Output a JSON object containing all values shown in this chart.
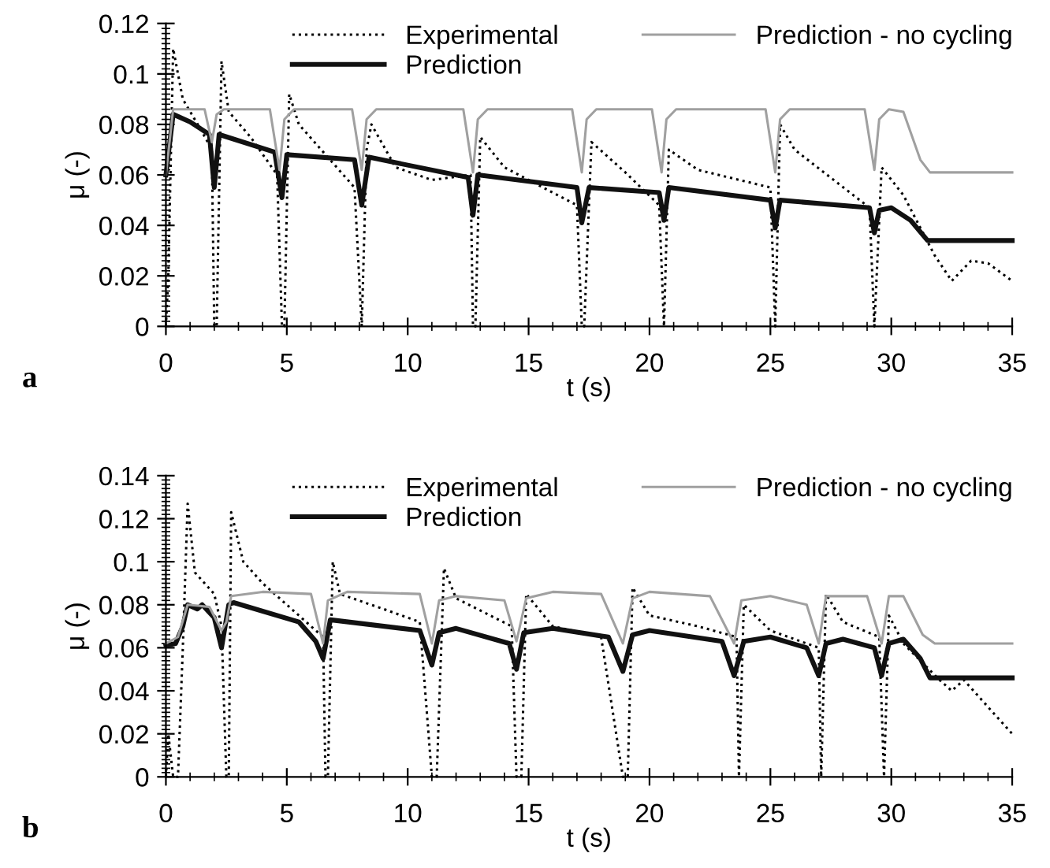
{
  "chart_data": [
    {
      "type": "line",
      "xlabel": "t (s)",
      "ylabel": "μ (-)",
      "annotations": [
        "a"
      ],
      "xlim": [
        0,
        35
      ],
      "ylim": [
        0,
        0.12
      ],
      "xticks": [
        0,
        5,
        10,
        15,
        20,
        25,
        30,
        35
      ],
      "yticks": [
        0,
        0.02,
        0.04,
        0.06,
        0.08,
        0.1,
        0.12
      ],
      "grid": false,
      "legend": "top",
      "series": [
        {
          "name": "Experimental",
          "color": "#000000",
          "line_style": "dotted",
          "x": [
            0,
            0.1,
            0.3,
            0.7,
            1.5,
            1.9,
            2.0,
            2.1,
            2.3,
            2.6,
            3.5,
            4.6,
            4.8,
            4.9,
            5.1,
            5.5,
            7.8,
            8.1,
            8.3,
            8.5,
            9.5,
            11,
            12.6,
            12.7,
            12.8,
            13.0,
            14,
            17.0,
            17.2,
            17.3,
            17.6,
            19,
            20.4,
            20.6,
            20.8,
            22,
            25.0,
            25.2,
            25.4,
            26,
            29.1,
            29.3,
            29.6,
            30.5,
            31.8,
            32.5,
            33.3,
            34,
            35
          ],
          "values": [
            0.0,
            0.02,
            0.11,
            0.09,
            0.077,
            0.07,
            0.0,
            0.0,
            0.105,
            0.085,
            0.075,
            0.06,
            0.0,
            0.0,
            0.092,
            0.08,
            0.055,
            0.0,
            0.07,
            0.08,
            0.063,
            0.058,
            0.06,
            0.0,
            0.0,
            0.075,
            0.063,
            0.048,
            0.0,
            0.0,
            0.073,
            0.061,
            0.048,
            0.0,
            0.07,
            0.062,
            0.055,
            0.0,
            0.08,
            0.07,
            0.047,
            0.0,
            0.063,
            0.052,
            0.028,
            0.018,
            0.026,
            0.025,
            0.018
          ]
        },
        {
          "name": "Prediction",
          "color": "#111111",
          "line_style": "solid",
          "x": [
            0,
            0.3,
            1.0,
            1.8,
            2.0,
            2.2,
            4.5,
            4.8,
            5.0,
            7.8,
            8.1,
            8.4,
            12.5,
            12.7,
            12.9,
            17.0,
            17.2,
            17.5,
            20.4,
            20.6,
            20.8,
            25.0,
            25.2,
            25.4,
            29.1,
            29.3,
            29.5,
            30.0,
            30.8,
            31.5,
            35
          ],
          "values": [
            0.06,
            0.084,
            0.081,
            0.076,
            0.055,
            0.076,
            0.069,
            0.051,
            0.068,
            0.066,
            0.048,
            0.067,
            0.059,
            0.044,
            0.06,
            0.055,
            0.041,
            0.055,
            0.053,
            0.042,
            0.055,
            0.05,
            0.039,
            0.05,
            0.047,
            0.037,
            0.046,
            0.047,
            0.042,
            0.034,
            0.034
          ]
        },
        {
          "name": "Prediction - no cycling",
          "color": "#a0a0a0",
          "line_style": "solid",
          "x": [
            0,
            0.3,
            1.6,
            1.9,
            2.1,
            2.4,
            4.3,
            4.7,
            4.9,
            5.3,
            7.7,
            8.1,
            8.3,
            8.7,
            12.3,
            12.7,
            12.9,
            13.3,
            16.8,
            17.2,
            17.4,
            17.8,
            20.1,
            20.5,
            20.7,
            21.1,
            24.8,
            25.2,
            25.4,
            25.8,
            28.9,
            29.3,
            29.5,
            29.9,
            30.5,
            31.2,
            31.6,
            35
          ],
          "values": [
            0.06,
            0.086,
            0.086,
            0.073,
            0.084,
            0.086,
            0.086,
            0.062,
            0.082,
            0.086,
            0.086,
            0.062,
            0.082,
            0.086,
            0.086,
            0.061,
            0.082,
            0.086,
            0.086,
            0.061,
            0.082,
            0.086,
            0.086,
            0.061,
            0.082,
            0.086,
            0.086,
            0.061,
            0.082,
            0.086,
            0.086,
            0.062,
            0.082,
            0.086,
            0.085,
            0.066,
            0.061,
            0.061
          ]
        }
      ]
    },
    {
      "type": "line",
      "xlabel": "t (s)",
      "ylabel": "μ (-)",
      "annotations": [
        "b"
      ],
      "xlim": [
        0,
        35
      ],
      "ylim": [
        0,
        0.14
      ],
      "xticks": [
        0,
        5,
        10,
        15,
        20,
        25,
        30,
        35
      ],
      "yticks": [
        0,
        0.02,
        0.04,
        0.06,
        0.08,
        0.1,
        0.12,
        0.14
      ],
      "grid": false,
      "legend": "top",
      "series": [
        {
          "name": "Experimental",
          "color": "#000000",
          "line_style": "dotted",
          "x": [
            0,
            0.1,
            0.3,
            0.5,
            0.7,
            0.9,
            1.2,
            2.0,
            2.3,
            2.5,
            2.6,
            2.7,
            3.2,
            4,
            5,
            6.5,
            6.6,
            6.7,
            6.9,
            7.2,
            9,
            10.5,
            11.0,
            11.2,
            11.5,
            12,
            14.3,
            14.5,
            14.7,
            14.9,
            16,
            18,
            18.9,
            19.1,
            19.3,
            20,
            22,
            23.6,
            23.7,
            23.9,
            25,
            27.0,
            27.1,
            27.3,
            28,
            29.5,
            29.7,
            29.9,
            30.5,
            32,
            32.5,
            33,
            35
          ],
          "values": [
            0.0,
            0.02,
            0.0,
            0.0,
            0.06,
            0.127,
            0.095,
            0.085,
            0.07,
            0.0,
            0.0,
            0.123,
            0.1,
            0.09,
            0.08,
            0.065,
            0.0,
            0.0,
            0.1,
            0.085,
            0.078,
            0.072,
            0.0,
            0.0,
            0.097,
            0.083,
            0.07,
            0.0,
            0.0,
            0.085,
            0.07,
            0.065,
            0.0,
            0.0,
            0.088,
            0.075,
            0.07,
            0.065,
            0.0,
            0.08,
            0.068,
            0.06,
            0.0,
            0.085,
            0.072,
            0.065,
            0.0,
            0.075,
            0.062,
            0.045,
            0.04,
            0.045,
            0.02
          ]
        },
        {
          "name": "Prediction",
          "color": "#111111",
          "line_style": "solid",
          "x": [
            0,
            0.4,
            0.7,
            0.9,
            1.3,
            1.5,
            2.0,
            2.3,
            2.6,
            2.8,
            5.5,
            6.2,
            6.5,
            6.8,
            10.5,
            11.0,
            11.3,
            12,
            14.2,
            14.5,
            14.8,
            16,
            18.3,
            18.9,
            19.3,
            20,
            23,
            23.5,
            23.9,
            25,
            26.5,
            27.0,
            27.3,
            28,
            29.3,
            29.6,
            29.9,
            30.5,
            31.2,
            31.6,
            35
          ],
          "values": [
            0.061,
            0.062,
            0.07,
            0.08,
            0.078,
            0.08,
            0.074,
            0.06,
            0.08,
            0.081,
            0.072,
            0.063,
            0.055,
            0.073,
            0.068,
            0.052,
            0.067,
            0.069,
            0.062,
            0.05,
            0.067,
            0.069,
            0.065,
            0.049,
            0.066,
            0.068,
            0.063,
            0.047,
            0.063,
            0.065,
            0.06,
            0.047,
            0.062,
            0.064,
            0.06,
            0.047,
            0.062,
            0.064,
            0.055,
            0.046,
            0.046
          ]
        },
        {
          "name": "Prediction - no cycling",
          "color": "#a0a0a0",
          "line_style": "solid",
          "x": [
            0,
            0.5,
            0.9,
            1.8,
            2.3,
            2.5,
            2.7,
            4,
            6,
            6.5,
            6.7,
            7.5,
            10.5,
            11.0,
            11.3,
            12,
            14.0,
            14.5,
            14.9,
            16,
            18,
            18.9,
            19.3,
            20,
            22.5,
            23.5,
            23.8,
            25,
            26.5,
            27.0,
            27.3,
            29,
            29.6,
            29.9,
            30.5,
            31.3,
            31.8,
            35
          ],
          "values": [
            0.062,
            0.065,
            0.08,
            0.079,
            0.068,
            0.072,
            0.084,
            0.086,
            0.085,
            0.062,
            0.082,
            0.086,
            0.085,
            0.062,
            0.082,
            0.084,
            0.082,
            0.063,
            0.083,
            0.086,
            0.085,
            0.062,
            0.083,
            0.086,
            0.084,
            0.062,
            0.082,
            0.084,
            0.08,
            0.062,
            0.084,
            0.084,
            0.062,
            0.084,
            0.084,
            0.066,
            0.062,
            0.062
          ]
        }
      ]
    }
  ]
}
